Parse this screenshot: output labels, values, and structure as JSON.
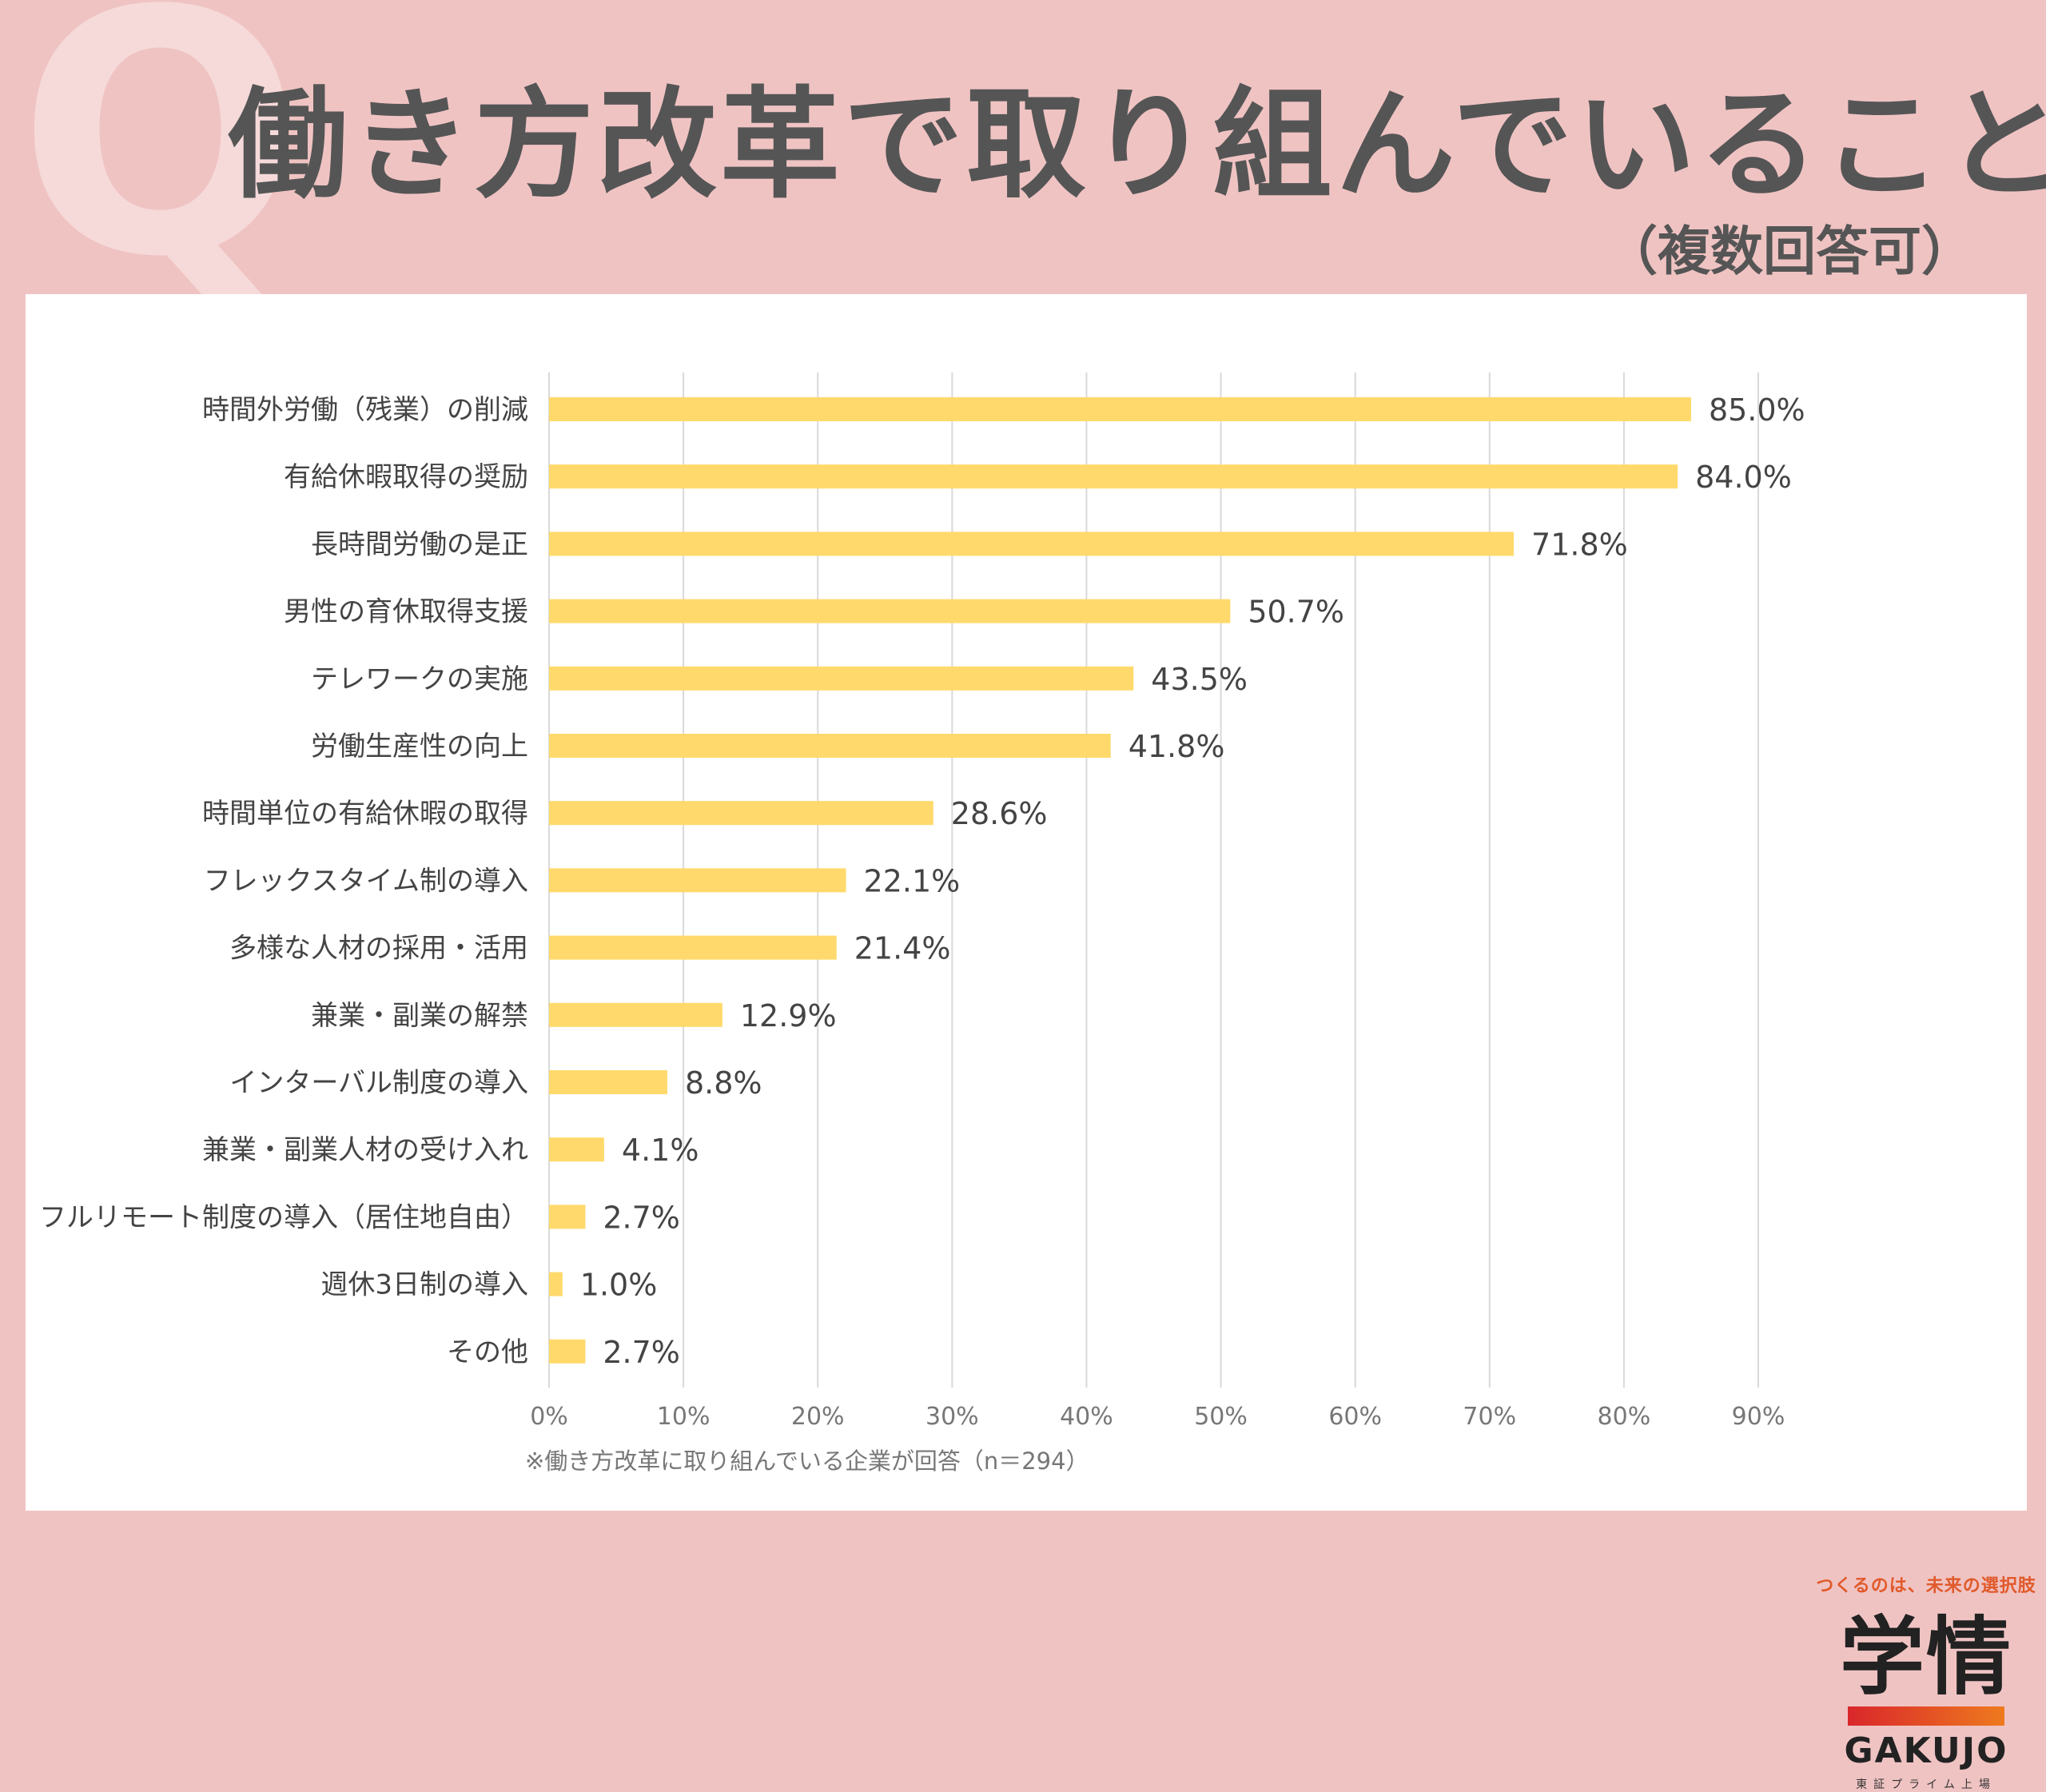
{
  "header": {
    "q_mark": "Q",
    "title": "働き方改革で取り組んでいること",
    "subtitle": "（複数回答可）"
  },
  "footnote": "※働き方改革に取り組んでいる企業が回答（n＝294）",
  "logo": {
    "tagline": "つくるのは、未来の選択肢",
    "kanji": "学情",
    "english": "GAKUJO",
    "sub": "東証プライム上場"
  },
  "colors": {
    "bar": "#ffd96b",
    "grid": "#d9d9d9",
    "text": "#444444",
    "background": "#f0c3c3"
  },
  "chart_data": {
    "type": "bar",
    "orientation": "horizontal",
    "title": "働き方改革で取り組んでいること",
    "xlabel": "",
    "ylabel": "",
    "xlim": [
      0,
      90
    ],
    "x_ticks": [
      0,
      10,
      20,
      30,
      40,
      50,
      60,
      70,
      80,
      90
    ],
    "tick_suffix": "%",
    "grid": true,
    "categories": [
      "時間外労働（残業）の削減",
      "有給休暇取得の奨励",
      "長時間労働の是正",
      "男性の育休取得支援",
      "テレワークの実施",
      "労働生産性の向上",
      "時間単位の有給休暇の取得",
      "フレックスタイム制の導入",
      "多様な人材の採用・活用",
      "兼業・副業の解禁",
      "インターバル制度の導入",
      "兼業・副業人材の受け入れ",
      "フルリモート制度の導入（居住地自由）",
      "週休3日制の導入",
      "その他"
    ],
    "values": [
      85.0,
      84.0,
      71.8,
      50.7,
      43.5,
      41.8,
      28.6,
      22.1,
      21.4,
      12.9,
      8.8,
      4.1,
      2.7,
      1.0,
      2.7
    ],
    "value_labels": [
      "85.0%",
      "84.0%",
      "71.8%",
      "50.7%",
      "43.5%",
      "41.8%",
      "28.6%",
      "22.1%",
      "21.4%",
      "12.9%",
      "8.8%",
      "4.1%",
      "2.7%",
      "1.0%",
      "2.7%"
    ]
  }
}
